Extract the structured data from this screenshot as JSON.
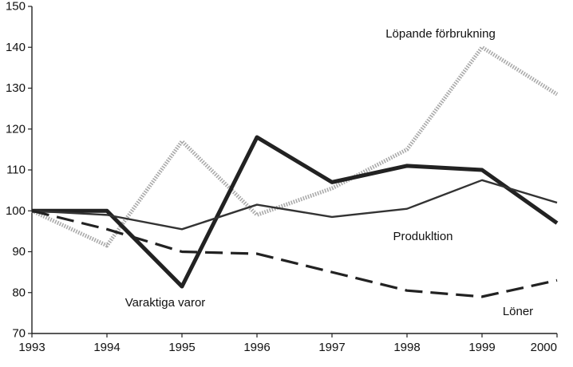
{
  "chart_data": {
    "type": "line",
    "title": "",
    "xlabel": "",
    "ylabel": "",
    "x": [
      1993,
      1994,
      1995,
      1996,
      1997,
      1998,
      1999,
      2000
    ],
    "xlim": [
      1993,
      2000
    ],
    "ylim": [
      70,
      150
    ],
    "yticks": [
      70,
      80,
      90,
      100,
      110,
      120,
      130,
      140,
      150
    ],
    "xticks": [
      1993,
      1994,
      1995,
      1996,
      1997,
      1998,
      1999,
      2000
    ],
    "grid": false,
    "legend": "none (series labelled directly on chart)",
    "series": [
      {
        "name": "Löpande förbrukning",
        "style": "dotted",
        "color": "#aaaaaa",
        "values": [
          100,
          91.5,
          117,
          99,
          105.5,
          115,
          140,
          128.5
        ]
      },
      {
        "name": "Varaktiga varor",
        "style": "thick-solid",
        "color": "#222222",
        "values": [
          100,
          100,
          81.5,
          118,
          107,
          111,
          110,
          97
        ]
      },
      {
        "name": "Produkltion",
        "style": "solid",
        "color": "#333333",
        "values": [
          100,
          99,
          95.5,
          101.5,
          98.5,
          100.5,
          107.5,
          102
        ]
      },
      {
        "name": "Löner",
        "style": "dashed",
        "color": "#222222",
        "values": [
          100,
          95.5,
          90,
          89.5,
          85,
          80.5,
          79,
          83
        ]
      }
    ]
  }
}
